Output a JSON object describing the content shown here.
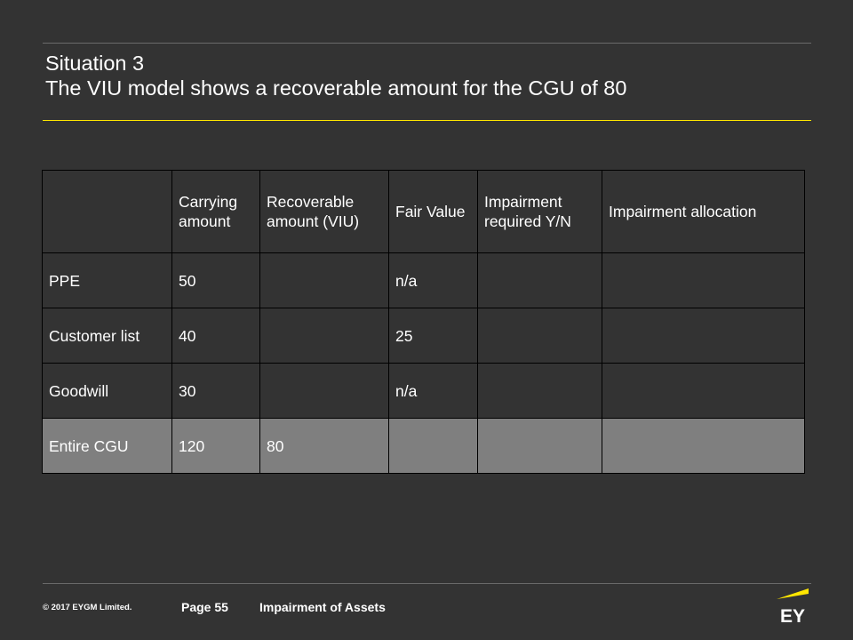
{
  "title": {
    "line1": "Situation 3",
    "line2": "The VIU model shows a recoverable amount for the CGU of 80"
  },
  "table": {
    "headers": [
      "",
      "Carrying amount",
      "Recoverable amount  (VIU)",
      "Fair Value",
      "Impairment required Y/N",
      "Impairment  allocation"
    ],
    "rows": [
      [
        "PPE",
        "50",
        "",
        "n/a",
        "",
        ""
      ],
      [
        "Customer list",
        "40",
        "",
        "25",
        "",
        ""
      ],
      [
        "Goodwill",
        "30",
        "",
        "n/a",
        "",
        ""
      ],
      [
        "Entire CGU",
        "120",
        "80",
        "",
        "",
        ""
      ]
    ]
  },
  "footer": {
    "copyright": "© 2017  EYGM  Limited.",
    "page": "Page 55",
    "doc_title": "Impairment of Assets",
    "logo_text": "EY"
  },
  "colors": {
    "background": "#333333",
    "accent_yellow": "#ffe600",
    "total_row": "#7f7f7f"
  }
}
